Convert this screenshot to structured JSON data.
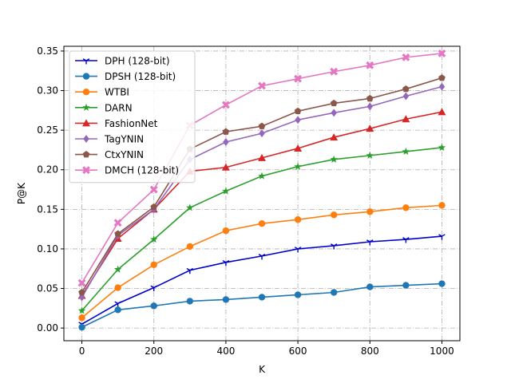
{
  "chart_data": {
    "type": "line",
    "xlabel": "K",
    "ylabel": "P@K",
    "x": [
      0,
      100,
      200,
      300,
      400,
      500,
      600,
      700,
      800,
      900,
      1000
    ],
    "xlim": [
      -50,
      1050
    ],
    "ylim": [
      -0.016,
      0.356
    ],
    "xticks": [
      0,
      200,
      400,
      600,
      800,
      1000
    ],
    "xtick_labels": [
      "0",
      "200",
      "400",
      "600",
      "800",
      "1000"
    ],
    "yticks": [
      0.0,
      0.05,
      0.1,
      0.15,
      0.2,
      0.25,
      0.3,
      0.35
    ],
    "ytick_labels": [
      "0.00",
      "0.05",
      "0.10",
      "0.15",
      "0.20",
      "0.25",
      "0.30",
      "0.35"
    ],
    "grid": true,
    "legend_position": "upper-left",
    "series": [
      {
        "name": "DPH (128-bit)",
        "color": "#0000cd",
        "marker": "tri-down",
        "values": [
          0.005,
          0.031,
          0.051,
          0.073,
          0.083,
          0.091,
          0.1,
          0.104,
          0.109,
          0.112,
          0.116
        ]
      },
      {
        "name": "DPSH (128-bit)",
        "color": "#1f77b4",
        "marker": "circle",
        "values": [
          0.001,
          0.023,
          0.028,
          0.034,
          0.036,
          0.039,
          0.042,
          0.045,
          0.052,
          0.054,
          0.056
        ]
      },
      {
        "name": "WTBI",
        "color": "#ff7f0e",
        "marker": "circle",
        "values": [
          0.013,
          0.051,
          0.08,
          0.103,
          0.123,
          0.132,
          0.137,
          0.143,
          0.147,
          0.152,
          0.155
        ]
      },
      {
        "name": "DARN",
        "color": "#2ca02c",
        "marker": "star",
        "values": [
          0.022,
          0.074,
          0.112,
          0.152,
          0.173,
          0.192,
          0.204,
          0.213,
          0.218,
          0.223,
          0.228
        ]
      },
      {
        "name": "FashionNet",
        "color": "#d62728",
        "marker": "triangle-up",
        "values": [
          0.041,
          0.113,
          0.15,
          0.198,
          0.203,
          0.215,
          0.227,
          0.241,
          0.252,
          0.264,
          0.273
        ]
      },
      {
        "name": "TagYNIN",
        "color": "#9467bd",
        "marker": "diamond",
        "values": [
          0.039,
          0.117,
          0.15,
          0.213,
          0.235,
          0.246,
          0.263,
          0.272,
          0.28,
          0.293,
          0.305
        ]
      },
      {
        "name": "CtxYNIN",
        "color": "#8c564b",
        "marker": "pentagon",
        "values": [
          0.045,
          0.119,
          0.153,
          0.226,
          0.248,
          0.255,
          0.274,
          0.284,
          0.29,
          0.302,
          0.316
        ]
      },
      {
        "name": "DMCH (128-bit)",
        "color": "#e377c2",
        "marker": "x",
        "values": [
          0.057,
          0.133,
          0.175,
          0.256,
          0.282,
          0.306,
          0.315,
          0.324,
          0.332,
          0.342,
          0.347
        ]
      }
    ]
  }
}
